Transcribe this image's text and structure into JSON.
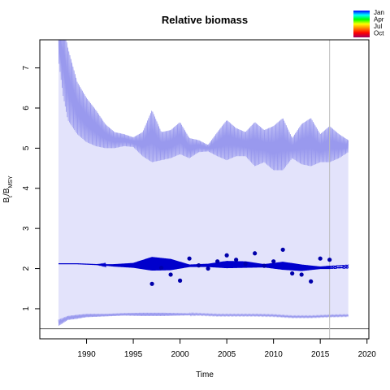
{
  "chart_data": {
    "type": "line",
    "title": "Relative biomass",
    "xlabel": "Time",
    "ylabel_main": "B",
    "ylabel_sub1": "t",
    "ylabel_mid": "/B",
    "ylabel_sub2": "MSY",
    "xlim": [
      1985.0,
      2020.2
    ],
    "ylim": [
      0.25,
      7.7
    ],
    "xticks": [
      1990,
      1995,
      2000,
      2005,
      2010,
      2015,
      2020
    ],
    "yticks": [
      1,
      2,
      3,
      4,
      5,
      6,
      7
    ],
    "vline_x": 2016.0,
    "hline_y": 0.5,
    "series": [
      {
        "name": "Median relative biomass",
        "color": "#0000cc",
        "x": [
          1987.0,
          1989.0,
          1991.0,
          1993.0,
          1995.0,
          1997.0,
          1999.0,
          2001.0,
          2003.0,
          2005.0,
          2007.0,
          2009.0,
          2011.0,
          2013.0,
          2015.0,
          2016.0,
          2018.0
        ],
        "values": [
          2.12,
          2.12,
          2.1,
          2.08,
          2.08,
          2.12,
          2.1,
          2.07,
          2.08,
          2.1,
          2.1,
          2.07,
          2.07,
          2.02,
          2.02,
          2.03,
          2.05
        ],
        "amplitude": [
          0.0,
          0.0,
          0.0,
          0.03,
          0.06,
          0.17,
          0.14,
          0.03,
          0.04,
          0.09,
          0.08,
          0.04,
          0.1,
          0.08,
          0.03,
          0.04,
          0.05
        ]
      },
      {
        "name": "Upper credible limit",
        "color": "#9999ee",
        "x": [
          1987.0,
          1987.5,
          1988.0,
          1989.0,
          1990.0,
          1991.0,
          1992.0,
          1993.0,
          1994.0,
          1995.0,
          1996.0,
          1997.0,
          1998.0,
          1999.0,
          2000.0,
          2001.0,
          2002.0,
          2003.0,
          2004.0,
          2005.0,
          2006.0,
          2007.0,
          2008.0,
          2009.0,
          2010.0,
          2011.0,
          2012.0,
          2013.0,
          2014.0,
          2015.0,
          2016.0,
          2017.0,
          2018.0
        ],
        "values": [
          7.6,
          7.2,
          6.6,
          6.0,
          5.7,
          5.5,
          5.3,
          5.2,
          5.2,
          5.15,
          5.1,
          5.3,
          5.05,
          5.1,
          5.25,
          5.0,
          5.05,
          5.0,
          5.1,
          5.2,
          5.15,
          5.1,
          5.1,
          5.05,
          5.0,
          5.1,
          5.0,
          5.1,
          5.15,
          5.0,
          5.1,
          5.05,
          5.05
        ],
        "amplitude": [
          0.4,
          0.9,
          0.9,
          0.65,
          0.55,
          0.45,
          0.3,
          0.2,
          0.15,
          0.12,
          0.3,
          0.65,
          0.35,
          0.35,
          0.4,
          0.25,
          0.15,
          0.08,
          0.3,
          0.5,
          0.35,
          0.3,
          0.55,
          0.4,
          0.55,
          0.65,
          0.25,
          0.5,
          0.6,
          0.35,
          0.45,
          0.3,
          0.15
        ]
      },
      {
        "name": "Lower credible limit",
        "color": "#9999ee",
        "x": [
          1987.0,
          1988.0,
          1989.0,
          1990.0,
          1992.0,
          1994.0,
          1996.0,
          1998.0,
          2000.0,
          2002.0,
          2004.0,
          2006.0,
          2008.0,
          2010.0,
          2012.0,
          2014.0,
          2016.0,
          2018.0
        ],
        "values": [
          0.65,
          0.77,
          0.8,
          0.83,
          0.84,
          0.86,
          0.86,
          0.86,
          0.86,
          0.86,
          0.84,
          0.84,
          0.84,
          0.83,
          0.8,
          0.8,
          0.82,
          0.83
        ],
        "amplitude": [
          0.08,
          0.05,
          0.05,
          0.04,
          0.03,
          0.03,
          0.04,
          0.04,
          0.03,
          0.02,
          0.02,
          0.02,
          0.02,
          0.02,
          0.02,
          0.02,
          0.02,
          0.02
        ]
      }
    ],
    "index_points": {
      "name": "Observed index",
      "color": "#0000aa",
      "x": [
        1997.0,
        1998.0,
        1999.0,
        2000.0,
        2001.0,
        2002.0,
        2003.0,
        2004.0,
        2005.0,
        2006.0,
        2007.0,
        2008.0,
        2009.0,
        2010.0,
        2011.0,
        2012.0,
        2013.0,
        2014.0,
        2015.0,
        2016.0
      ],
      "y": [
        1.62,
        2.02,
        1.85,
        1.7,
        2.25,
        2.08,
        2.0,
        2.18,
        2.33,
        2.22,
        2.12,
        2.38,
        2.07,
        2.18,
        2.47,
        1.88,
        1.85,
        1.68,
        2.25,
        2.22
      ]
    },
    "band_color": "#e3e3fb",
    "grid": false
  },
  "legend": {
    "title": "",
    "placement": "top-right",
    "entries": [
      {
        "label": "Jan",
        "color": "#0000ff"
      },
      {
        "label": "Apr",
        "color": "#00ffff"
      },
      {
        "label": "Jul",
        "color": "#ffff00"
      },
      {
        "label": "Oct",
        "color": "#ff0000"
      }
    ],
    "gradient": [
      "#0000ff",
      "#00ffff",
      "#00ff00",
      "#ffff00",
      "#ff8000",
      "#ff0000",
      "#a00060"
    ]
  }
}
